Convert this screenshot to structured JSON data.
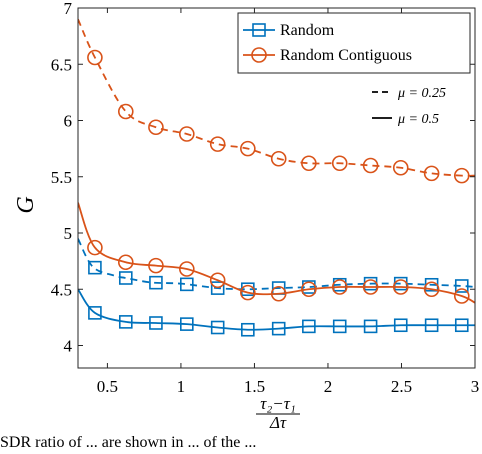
{
  "chart_data": {
    "type": "line",
    "title": "",
    "ylabel": "G",
    "xlabel": "(τ₂−τ₁)/Δτ",
    "xlim": [
      0.3,
      3.0
    ],
    "ylim": [
      3.8,
      7.0
    ],
    "xticks": [
      0.5,
      1,
      1.5,
      2,
      2.5,
      3
    ],
    "xtick_labels": [
      "0.5",
      "1",
      "1.5",
      "2",
      "2.5",
      "3"
    ],
    "yticks": [
      4,
      4.5,
      5,
      5.5,
      6,
      6.5,
      7
    ],
    "ytick_labels": [
      "4",
      "4.5",
      "5",
      "5.5",
      "6",
      "6.5",
      "7"
    ],
    "grid": false,
    "legend_position": "top-right",
    "legend": {
      "markers": [
        {
          "name": "Random",
          "color": "#0072BD",
          "marker": "square"
        },
        {
          "name": "Random Contiguous",
          "color": "#D95319",
          "marker": "circle"
        }
      ],
      "styles": [
        {
          "name": "μ = 0.25",
          "dash": "dashed"
        },
        {
          "name": "μ = 0.5",
          "dash": "solid"
        }
      ]
    },
    "series": [
      {
        "method": "Random",
        "mu": "0.25",
        "color": "#0072BD",
        "marker": "square",
        "dash": "dashed",
        "x": [
          0.3,
          0.4,
          0.55,
          0.625,
          0.8,
          1.0,
          1.25,
          1.45,
          1.65,
          1.875,
          2.08,
          2.3,
          2.5,
          2.7,
          2.9,
          3.0
        ],
        "y": [
          4.95,
          4.7,
          4.62,
          4.6,
          4.56,
          4.55,
          4.51,
          4.5,
          4.51,
          4.52,
          4.54,
          4.55,
          4.55,
          4.54,
          4.53,
          4.52
        ],
        "markers_x": [
          0.415,
          0.625,
          0.83,
          1.04,
          1.25,
          1.455,
          1.665,
          1.87,
          2.08,
          2.29,
          2.495,
          2.705,
          2.91
        ]
      },
      {
        "method": "Random",
        "mu": "0.5",
        "color": "#0072BD",
        "marker": "square",
        "dash": "solid",
        "x": [
          0.3,
          0.415,
          0.625,
          0.83,
          1.04,
          1.25,
          1.455,
          1.665,
          1.87,
          2.08,
          2.29,
          2.495,
          2.705,
          2.91,
          3.0
        ],
        "y": [
          4.5,
          4.29,
          4.21,
          4.2,
          4.19,
          4.16,
          4.14,
          4.15,
          4.17,
          4.17,
          4.17,
          4.18,
          4.18,
          4.18,
          4.18
        ],
        "markers_x": [
          0.415,
          0.625,
          0.83,
          1.04,
          1.25,
          1.455,
          1.665,
          1.87,
          2.08,
          2.29,
          2.495,
          2.705,
          2.91
        ]
      },
      {
        "method": "Random Contiguous",
        "mu": "0.25",
        "color": "#D95319",
        "marker": "circle",
        "dash": "dashed",
        "x": [
          0.3,
          0.415,
          0.625,
          0.83,
          1.04,
          1.25,
          1.455,
          1.665,
          1.87,
          2.08,
          2.29,
          2.495,
          2.705,
          2.91,
          3.0
        ],
        "y": [
          6.9,
          6.56,
          6.08,
          5.94,
          5.88,
          5.79,
          5.75,
          5.66,
          5.62,
          5.62,
          5.6,
          5.58,
          5.53,
          5.51,
          5.51
        ],
        "markers_x": [
          0.415,
          0.625,
          0.83,
          1.04,
          1.25,
          1.455,
          1.665,
          1.87,
          2.08,
          2.29,
          2.495,
          2.705,
          2.91
        ]
      },
      {
        "method": "Random Contiguous",
        "mu": "0.5",
        "color": "#D95319",
        "marker": "circle",
        "dash": "solid",
        "x": [
          0.3,
          0.415,
          0.625,
          0.83,
          1.04,
          1.25,
          1.455,
          1.665,
          1.87,
          2.08,
          2.29,
          2.495,
          2.705,
          2.91,
          3.0
        ],
        "y": [
          5.27,
          4.87,
          4.74,
          4.71,
          4.68,
          4.58,
          4.47,
          4.46,
          4.5,
          4.52,
          4.52,
          4.52,
          4.5,
          4.44,
          4.38
        ],
        "markers_x": [
          0.415,
          0.625,
          0.83,
          1.04,
          1.25,
          1.455,
          1.665,
          1.87,
          2.08,
          2.29,
          2.495,
          2.705,
          2.91
        ]
      }
    ],
    "caption_fragment": "SDR ratio of ... are shown in ... of the ..."
  }
}
